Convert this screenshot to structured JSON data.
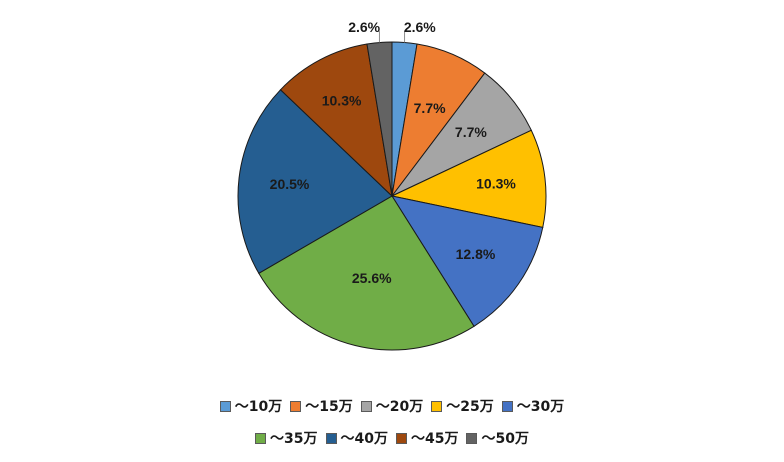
{
  "chart_data": {
    "type": "pie",
    "title": "",
    "unit": "%",
    "start_angle_deg": 0,
    "direction": "clockwise",
    "slices": [
      {
        "label": "～10万",
        "value": 2.6,
        "display": "2.6%",
        "color": "#5B9BD5"
      },
      {
        "label": "～15万",
        "value": 7.7,
        "display": "7.7%",
        "color": "#ED7D31"
      },
      {
        "label": "～20万",
        "value": 7.7,
        "display": "7.7%",
        "color": "#A5A5A5"
      },
      {
        "label": "～25万",
        "value": 10.3,
        "display": "10.3%",
        "color": "#FFC000"
      },
      {
        "label": "～30万",
        "value": 12.8,
        "display": "12.8%",
        "color": "#4472C4"
      },
      {
        "label": "～35万",
        "value": 25.6,
        "display": "25.6%",
        "color": "#70AD47"
      },
      {
        "label": "～40万",
        "value": 20.5,
        "display": "20.5%",
        "color": "#255E91"
      },
      {
        "label": "～45万",
        "value": 10.3,
        "display": "10.3%",
        "color": "#9E480E"
      },
      {
        "label": "～50万",
        "value": 2.6,
        "display": "2.6%",
        "color": "#636363"
      }
    ],
    "legend": {
      "placement": "bottom",
      "rows": [
        [
          0,
          1,
          2,
          3,
          4
        ],
        [
          5,
          6,
          7,
          8
        ]
      ]
    }
  }
}
